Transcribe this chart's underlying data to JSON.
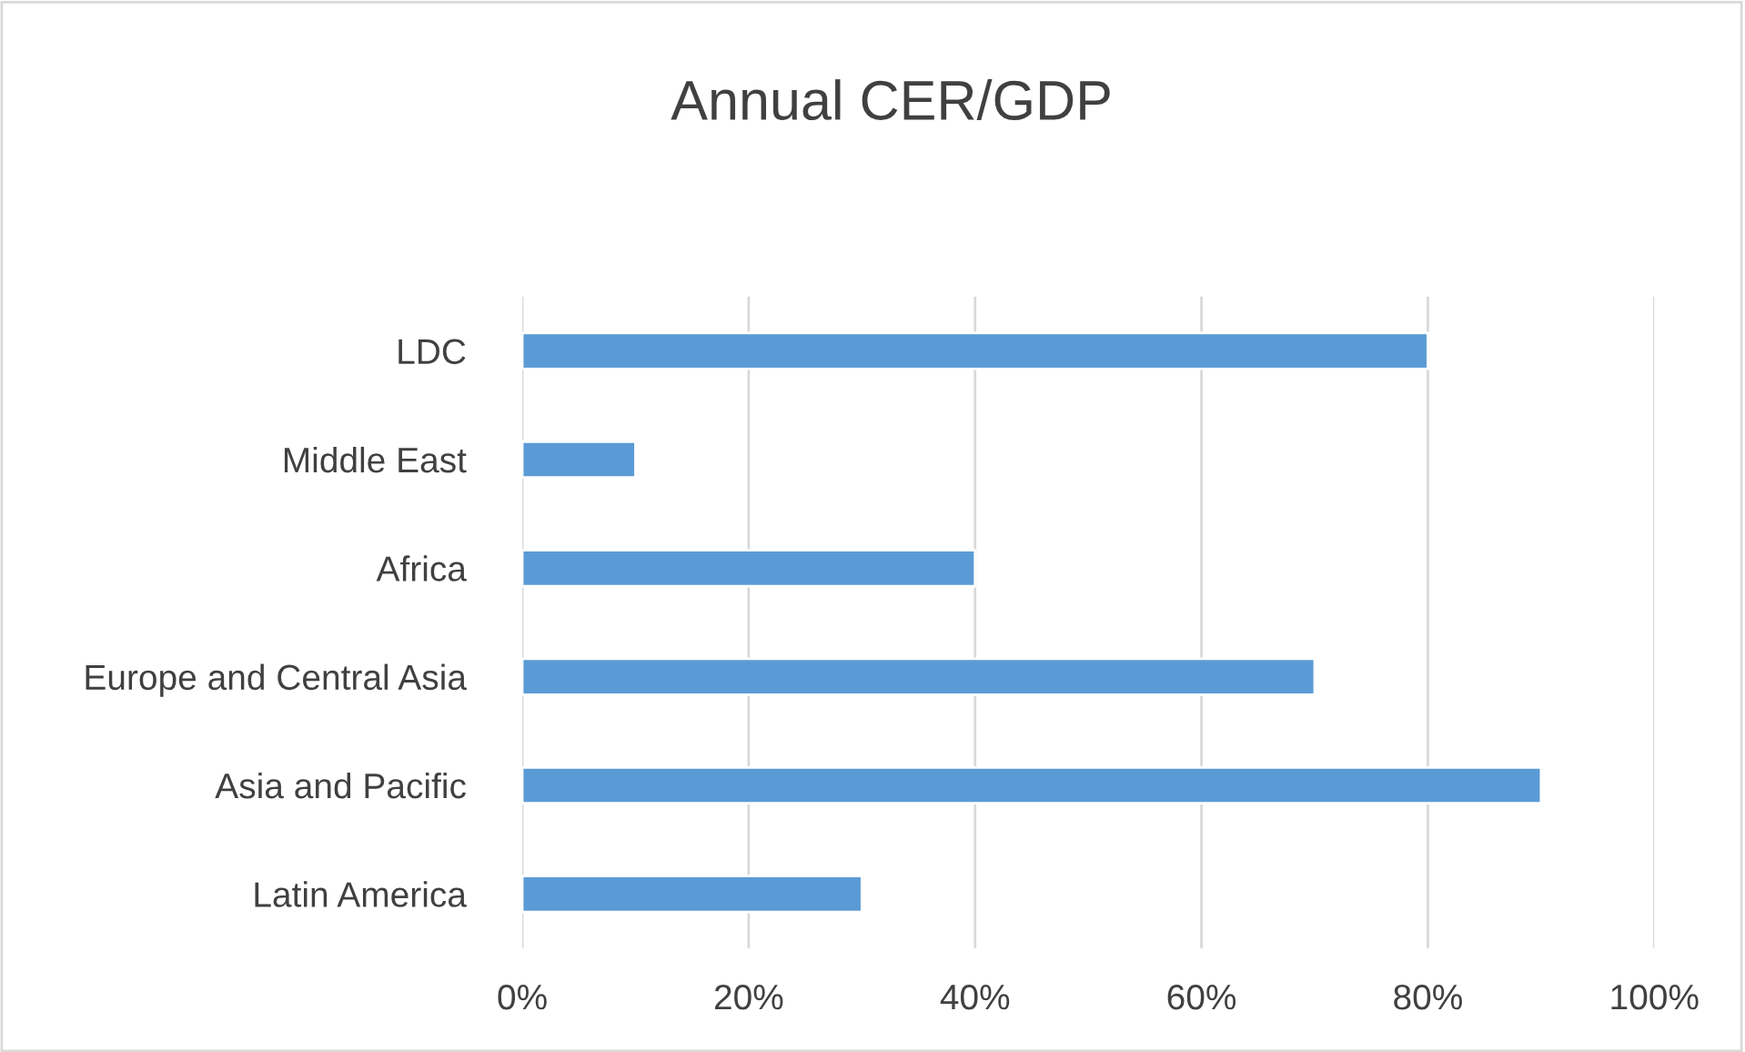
{
  "chart_data": {
    "type": "bar",
    "orientation": "horizontal",
    "title": "Annual CER/GDP",
    "categories": [
      "LDC",
      "Middle East",
      "Africa",
      "Europe and Central Asia",
      "Asia and Pacific",
      "Latin America"
    ],
    "values": [
      80,
      10,
      40,
      70,
      90,
      30
    ],
    "color": "#5b9bd5",
    "xlim": [
      0,
      100
    ],
    "xticks": [
      {
        "value": 0,
        "label": "0%"
      },
      {
        "value": 20,
        "label": "20%"
      },
      {
        "value": 40,
        "label": "40%"
      },
      {
        "value": 60,
        "label": "60%"
      },
      {
        "value": 80,
        "label": "80%"
      },
      {
        "value": 100,
        "label": "100%"
      }
    ],
    "grid": "x",
    "legend": false
  }
}
